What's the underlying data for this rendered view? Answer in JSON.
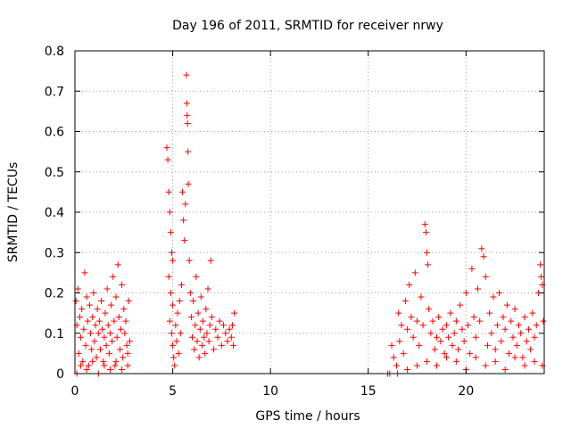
{
  "chart_data": {
    "type": "scatter",
    "title": "Day 196 of 2011, SRMTID for receiver nrwy",
    "xlabel": "GPS time / hours",
    "ylabel": "SRMTID / TECUs",
    "xlim": [
      0,
      24
    ],
    "ylim": [
      0,
      0.8
    ],
    "xticks": [
      0,
      5,
      10,
      15,
      20
    ],
    "yticks": [
      0,
      0.1,
      0.2,
      0.3,
      0.4,
      0.5,
      0.6,
      0.7,
      0.8
    ],
    "x_tick_labels": [
      "0",
      "5",
      "10",
      "15",
      "20"
    ],
    "y_tick_labels": [
      "0",
      "0.1",
      "0.2",
      "0.3",
      "0.4",
      "0.5",
      "0.6",
      "0.7",
      "0.8"
    ],
    "grid": true,
    "marker": "+",
    "color": "#ff0000",
    "series": [
      {
        "name": "nrwy",
        "points": [
          [
            0.05,
            0.18
          ],
          [
            0.1,
            0.12
          ],
          [
            0.15,
            0.21
          ],
          [
            0.2,
            0.05
          ],
          [
            0.25,
            0.14
          ],
          [
            0.3,
            0.09
          ],
          [
            0.35,
            0.16
          ],
          [
            0.4,
            0.03
          ],
          [
            0.45,
            0.11
          ],
          [
            0.5,
            0.25
          ],
          [
            0.55,
            0.07
          ],
          [
            0.6,
            0.19
          ],
          [
            0.65,
            0.13
          ],
          [
            0.7,
            0.02
          ],
          [
            0.75,
            0.17
          ],
          [
            0.8,
            0.1
          ],
          [
            0.85,
            0.06
          ],
          [
            0.9,
            0.14
          ],
          [
            0.95,
            0.2
          ],
          [
            1.0,
            0.08
          ],
          [
            1.05,
            0.12
          ],
          [
            1.1,
            0.04
          ],
          [
            1.15,
            0.16
          ],
          [
            1.2,
            0.1
          ],
          [
            1.25,
            0.13
          ],
          [
            1.3,
            0.06
          ],
          [
            1.35,
            0.18
          ],
          [
            1.4,
            0.11
          ],
          [
            1.45,
            0.03
          ],
          [
            1.5,
            0.09
          ],
          [
            1.55,
            0.15
          ],
          [
            1.6,
            0.07
          ],
          [
            1.65,
            0.21
          ],
          [
            1.7,
            0.12
          ],
          [
            1.75,
            0.05
          ],
          [
            1.8,
            0.1
          ],
          [
            1.85,
            0.17
          ],
          [
            1.9,
            0.08
          ],
          [
            1.95,
            0.24
          ],
          [
            2.0,
            0.13
          ],
          [
            2.05,
            0.02
          ],
          [
            2.1,
            0.19
          ],
          [
            2.15,
            0.09
          ],
          [
            2.2,
            0.27
          ],
          [
            2.25,
            0.14
          ],
          [
            2.3,
            0.06
          ],
          [
            2.35,
            0.11
          ],
          [
            2.4,
            0.22
          ],
          [
            2.45,
            0.04
          ],
          [
            2.5,
            0.16
          ],
          [
            2.55,
            0.1
          ],
          [
            2.6,
            0.13
          ],
          [
            2.65,
            0.07
          ],
          [
            2.7,
            0.05
          ],
          [
            2.75,
            0.18
          ],
          [
            2.8,
            0.08
          ],
          [
            0.1,
            0.0
          ],
          [
            0.3,
            0.02
          ],
          [
            0.6,
            0.01
          ],
          [
            0.9,
            0.03
          ],
          [
            1.2,
            0.0
          ],
          [
            1.5,
            0.02
          ],
          [
            1.8,
            0.01
          ],
          [
            2.1,
            0.03
          ],
          [
            2.4,
            0.01
          ],
          [
            2.7,
            0.02
          ],
          [
            4.7,
            0.56
          ],
          [
            4.75,
            0.53
          ],
          [
            4.8,
            0.45
          ],
          [
            4.85,
            0.4
          ],
          [
            4.9,
            0.35
          ],
          [
            4.95,
            0.3
          ],
          [
            5.0,
            0.28
          ],
          [
            4.8,
            0.24
          ],
          [
            4.9,
            0.2
          ],
          [
            5.0,
            0.17
          ],
          [
            4.85,
            0.13
          ],
          [
            4.95,
            0.1
          ],
          [
            5.0,
            0.07
          ],
          [
            5.05,
            0.04
          ],
          [
            5.1,
            0.02
          ],
          [
            5.15,
            0.12
          ],
          [
            5.2,
            0.08
          ],
          [
            5.25,
            0.15
          ],
          [
            5.3,
            0.05
          ],
          [
            5.35,
            0.18
          ],
          [
            5.4,
            0.1
          ],
          [
            5.45,
            0.22
          ],
          [
            5.5,
            0.45
          ],
          [
            5.55,
            0.38
          ],
          [
            5.6,
            0.33
          ],
          [
            5.65,
            0.42
          ],
          [
            5.7,
            0.74
          ],
          [
            5.72,
            0.67
          ],
          [
            5.74,
            0.64
          ],
          [
            5.76,
            0.62
          ],
          [
            5.78,
            0.55
          ],
          [
            5.8,
            0.47
          ],
          [
            5.85,
            0.28
          ],
          [
            5.9,
            0.2
          ],
          [
            5.95,
            0.14
          ],
          [
            6.0,
            0.09
          ],
          [
            6.05,
            0.18
          ],
          [
            6.1,
            0.06
          ],
          [
            6.15,
            0.12
          ],
          [
            6.2,
            0.24
          ],
          [
            6.25,
            0.08
          ],
          [
            6.3,
            0.15
          ],
          [
            6.35,
            0.04
          ],
          [
            6.4,
            0.11
          ],
          [
            6.45,
            0.19
          ],
          [
            6.5,
            0.07
          ],
          [
            6.55,
            0.13
          ],
          [
            6.6,
            0.09
          ],
          [
            6.65,
            0.05
          ],
          [
            6.7,
            0.16
          ],
          [
            6.75,
            0.1
          ],
          [
            6.8,
            0.21
          ],
          [
            6.85,
            0.08
          ],
          [
            6.9,
            0.12
          ],
          [
            6.95,
            0.28
          ],
          [
            7.0,
            0.14
          ],
          [
            7.1,
            0.06
          ],
          [
            7.2,
            0.11
          ],
          [
            7.3,
            0.09
          ],
          [
            7.4,
            0.13
          ],
          [
            7.5,
            0.07
          ],
          [
            7.6,
            0.12
          ],
          [
            7.7,
            0.1
          ],
          [
            7.8,
            0.08
          ],
          [
            7.9,
            0.11
          ],
          [
            8.0,
            0.09
          ],
          [
            8.05,
            0.12
          ],
          [
            8.1,
            0.07
          ],
          [
            8.15,
            0.15
          ],
          [
            16.1,
            0.0
          ],
          [
            16.2,
            0.07
          ],
          [
            16.3,
            0.04
          ],
          [
            16.45,
            0.02
          ],
          [
            16.55,
            0.15
          ],
          [
            16.6,
            0.08
          ],
          [
            16.7,
            0.12
          ],
          [
            16.8,
            0.05
          ],
          [
            16.9,
            0.18
          ],
          [
            17.0,
            0.11
          ],
          [
            17.1,
            0.22
          ],
          [
            17.2,
            0.14
          ],
          [
            17.3,
            0.09
          ],
          [
            17.4,
            0.25
          ],
          [
            17.5,
            0.13
          ],
          [
            17.6,
            0.07
          ],
          [
            17.7,
            0.19
          ],
          [
            17.8,
            0.12
          ],
          [
            17.9,
            0.37
          ],
          [
            17.95,
            0.35
          ],
          [
            18.0,
            0.3
          ],
          [
            18.05,
            0.27
          ],
          [
            18.1,
            0.16
          ],
          [
            18.2,
            0.1
          ],
          [
            18.3,
            0.13
          ],
          [
            18.4,
            0.06
          ],
          [
            18.5,
            0.09
          ],
          [
            18.6,
            0.14
          ],
          [
            18.7,
            0.08
          ],
          [
            18.8,
            0.11
          ],
          [
            18.9,
            0.05
          ],
          [
            19.0,
            0.12
          ],
          [
            19.1,
            0.09
          ],
          [
            19.2,
            0.15
          ],
          [
            19.3,
            0.07
          ],
          [
            19.4,
            0.1
          ],
          [
            19.5,
            0.13
          ],
          [
            19.6,
            0.06
          ],
          [
            19.7,
            0.17
          ],
          [
            19.8,
            0.11
          ],
          [
            19.9,
            0.08
          ],
          [
            20.0,
            0.2
          ],
          [
            20.1,
            0.12
          ],
          [
            20.2,
            0.05
          ],
          [
            20.3,
            0.26
          ],
          [
            20.4,
            0.14
          ],
          [
            20.5,
            0.09
          ],
          [
            20.6,
            0.21
          ],
          [
            20.7,
            0.13
          ],
          [
            20.8,
            0.31
          ],
          [
            20.9,
            0.29
          ],
          [
            21.0,
            0.24
          ],
          [
            21.1,
            0.07
          ],
          [
            21.2,
            0.15
          ],
          [
            21.3,
            0.1
          ],
          [
            21.4,
            0.19
          ],
          [
            21.5,
            0.06
          ],
          [
            21.6,
            0.12
          ],
          [
            21.7,
            0.2
          ],
          [
            21.8,
            0.08
          ],
          [
            21.9,
            0.14
          ],
          [
            22.0,
            0.11
          ],
          [
            22.1,
            0.17
          ],
          [
            22.2,
            0.05
          ],
          [
            22.3,
            0.13
          ],
          [
            22.4,
            0.09
          ],
          [
            22.5,
            0.16
          ],
          [
            22.6,
            0.07
          ],
          [
            22.7,
            0.12
          ],
          [
            22.8,
            0.1
          ],
          [
            22.9,
            0.04
          ],
          [
            23.0,
            0.14
          ],
          [
            23.1,
            0.08
          ],
          [
            23.2,
            0.11
          ],
          [
            23.3,
            0.06
          ],
          [
            23.4,
            0.15
          ],
          [
            23.5,
            0.09
          ],
          [
            23.6,
            0.12
          ],
          [
            23.7,
            0.2
          ],
          [
            23.8,
            0.27
          ],
          [
            23.85,
            0.24
          ],
          [
            23.9,
            0.22
          ],
          [
            23.95,
            0.13
          ],
          [
            16.0,
            0.0
          ],
          [
            16.5,
            0.0
          ],
          [
            17.0,
            0.01
          ],
          [
            17.5,
            0.02
          ],
          [
            18.0,
            0.03
          ],
          [
            18.5,
            0.02
          ],
          [
            19.0,
            0.04
          ],
          [
            19.5,
            0.03
          ],
          [
            20.0,
            0.01
          ],
          [
            20.5,
            0.04
          ],
          [
            21.0,
            0.02
          ],
          [
            21.5,
            0.03
          ],
          [
            22.0,
            0.01
          ],
          [
            22.5,
            0.04
          ],
          [
            23.0,
            0.02
          ],
          [
            23.5,
            0.03
          ],
          [
            23.9,
            0.02
          ]
        ]
      }
    ]
  }
}
